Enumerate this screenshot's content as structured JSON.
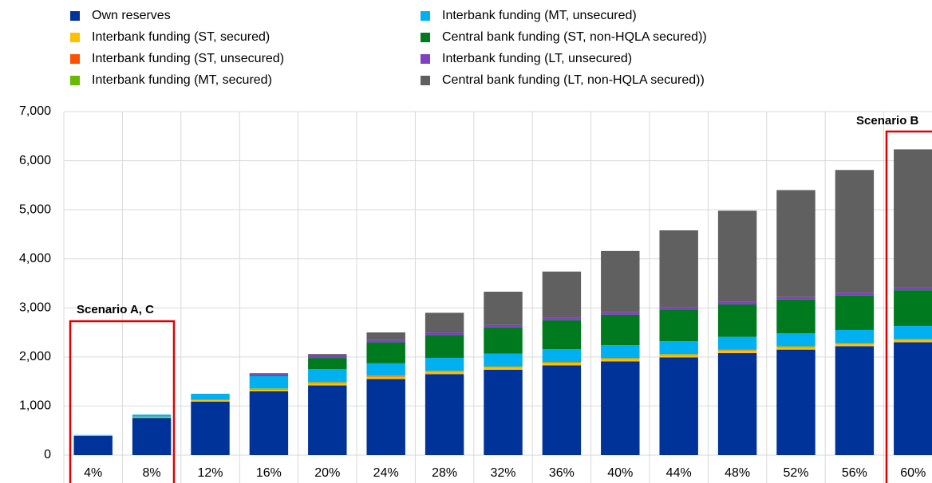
{
  "chart_data": {
    "type": "stacked-bar",
    "categories": [
      "4%",
      "8%",
      "12%",
      "16%",
      "20%",
      "24%",
      "28%",
      "32%",
      "36%",
      "40%",
      "44%",
      "48%",
      "52%",
      "56%",
      "60%"
    ],
    "series": [
      {
        "name": "Own reserves",
        "color": "#003399",
        "values": [
          390,
          760,
          1090,
          1300,
          1420,
          1550,
          1650,
          1740,
          1830,
          1910,
          1990,
          2080,
          2150,
          2220,
          2300
        ]
      },
      {
        "name": "Interbank funding (ST, secured)",
        "color": "#ffc000",
        "values": [
          10,
          20,
          30,
          40,
          50,
          50,
          50,
          50,
          50,
          50,
          50,
          50,
          50,
          50,
          50
        ]
      },
      {
        "name": "Interbank funding (ST, unsecured)",
        "color": "#ff5000",
        "values": [
          0,
          0,
          5,
          10,
          10,
          10,
          10,
          10,
          10,
          10,
          10,
          10,
          10,
          10,
          10
        ]
      },
      {
        "name": "Interbank funding (MT, secured)",
        "color": "#66bb00",
        "values": [
          0,
          5,
          5,
          10,
          10,
          10,
          10,
          10,
          10,
          10,
          10,
          10,
          10,
          10,
          10
        ]
      },
      {
        "name": "Interbank funding (MT, unsecured)",
        "color": "#00b0f0",
        "values": [
          10,
          40,
          120,
          250,
          260,
          250,
          260,
          260,
          260,
          260,
          260,
          260,
          260,
          260,
          260
        ]
      },
      {
        "name": "Central bank funding (ST, non-HQLA secured))",
        "color": "#007a1f",
        "values": [
          0,
          0,
          0,
          20,
          230,
          430,
          470,
          530,
          590,
          620,
          650,
          660,
          690,
          700,
          730
        ]
      },
      {
        "name": "Interbank funding (LT, unsecured)",
        "color": "#8040c0",
        "values": [
          0,
          0,
          0,
          40,
          50,
          50,
          50,
          50,
          50,
          50,
          50,
          50,
          50,
          60,
          60
        ]
      },
      {
        "name": "Central bank funding (LT, non-HQLA secured))",
        "color": "#606060",
        "values": [
          0,
          0,
          0,
          0,
          30,
          150,
          400,
          680,
          940,
          1250,
          1560,
          1860,
          2180,
          2500,
          2810
        ]
      }
    ],
    "ylim": [
      0,
      7000
    ],
    "yticks": [
      0,
      {
        "value": 1000,
        "label": "1,000"
      },
      {
        "value": 2000,
        "label": "2,000"
      },
      {
        "value": 3000,
        "label": "3,000"
      },
      {
        "value": 4000,
        "label": "4,000"
      },
      {
        "value": 5000,
        "label": "5,000"
      },
      {
        "value": 6000,
        "label": "6,000"
      },
      {
        "value": 7000,
        "label": "7,000"
      }
    ],
    "grid": true,
    "annotations": [
      "Scenario A, C",
      "Scenario B"
    ]
  }
}
